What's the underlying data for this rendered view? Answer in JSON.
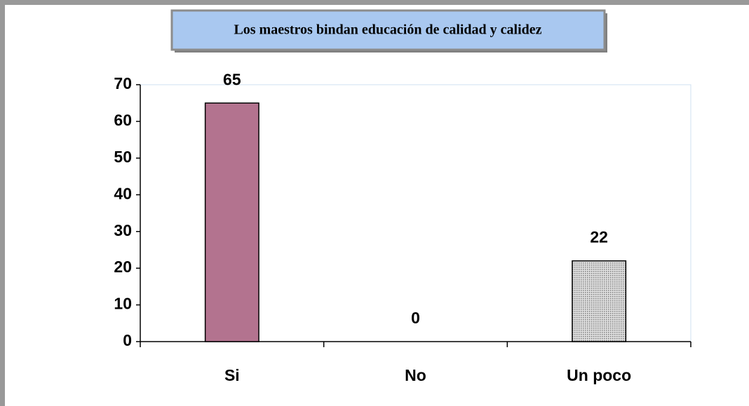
{
  "chart_data": {
    "type": "bar",
    "title": "Los maestros bindan educación de calidad y calidez",
    "categories": [
      "Si",
      "No",
      "Un poco"
    ],
    "values": [
      65,
      0,
      22
    ],
    "colors": [
      "#b3738f",
      null,
      "#c4c4c4"
    ],
    "ylim": [
      0,
      70
    ],
    "yticks": [
      0,
      10,
      20,
      30,
      40,
      50,
      60,
      70
    ],
    "grid": false
  }
}
